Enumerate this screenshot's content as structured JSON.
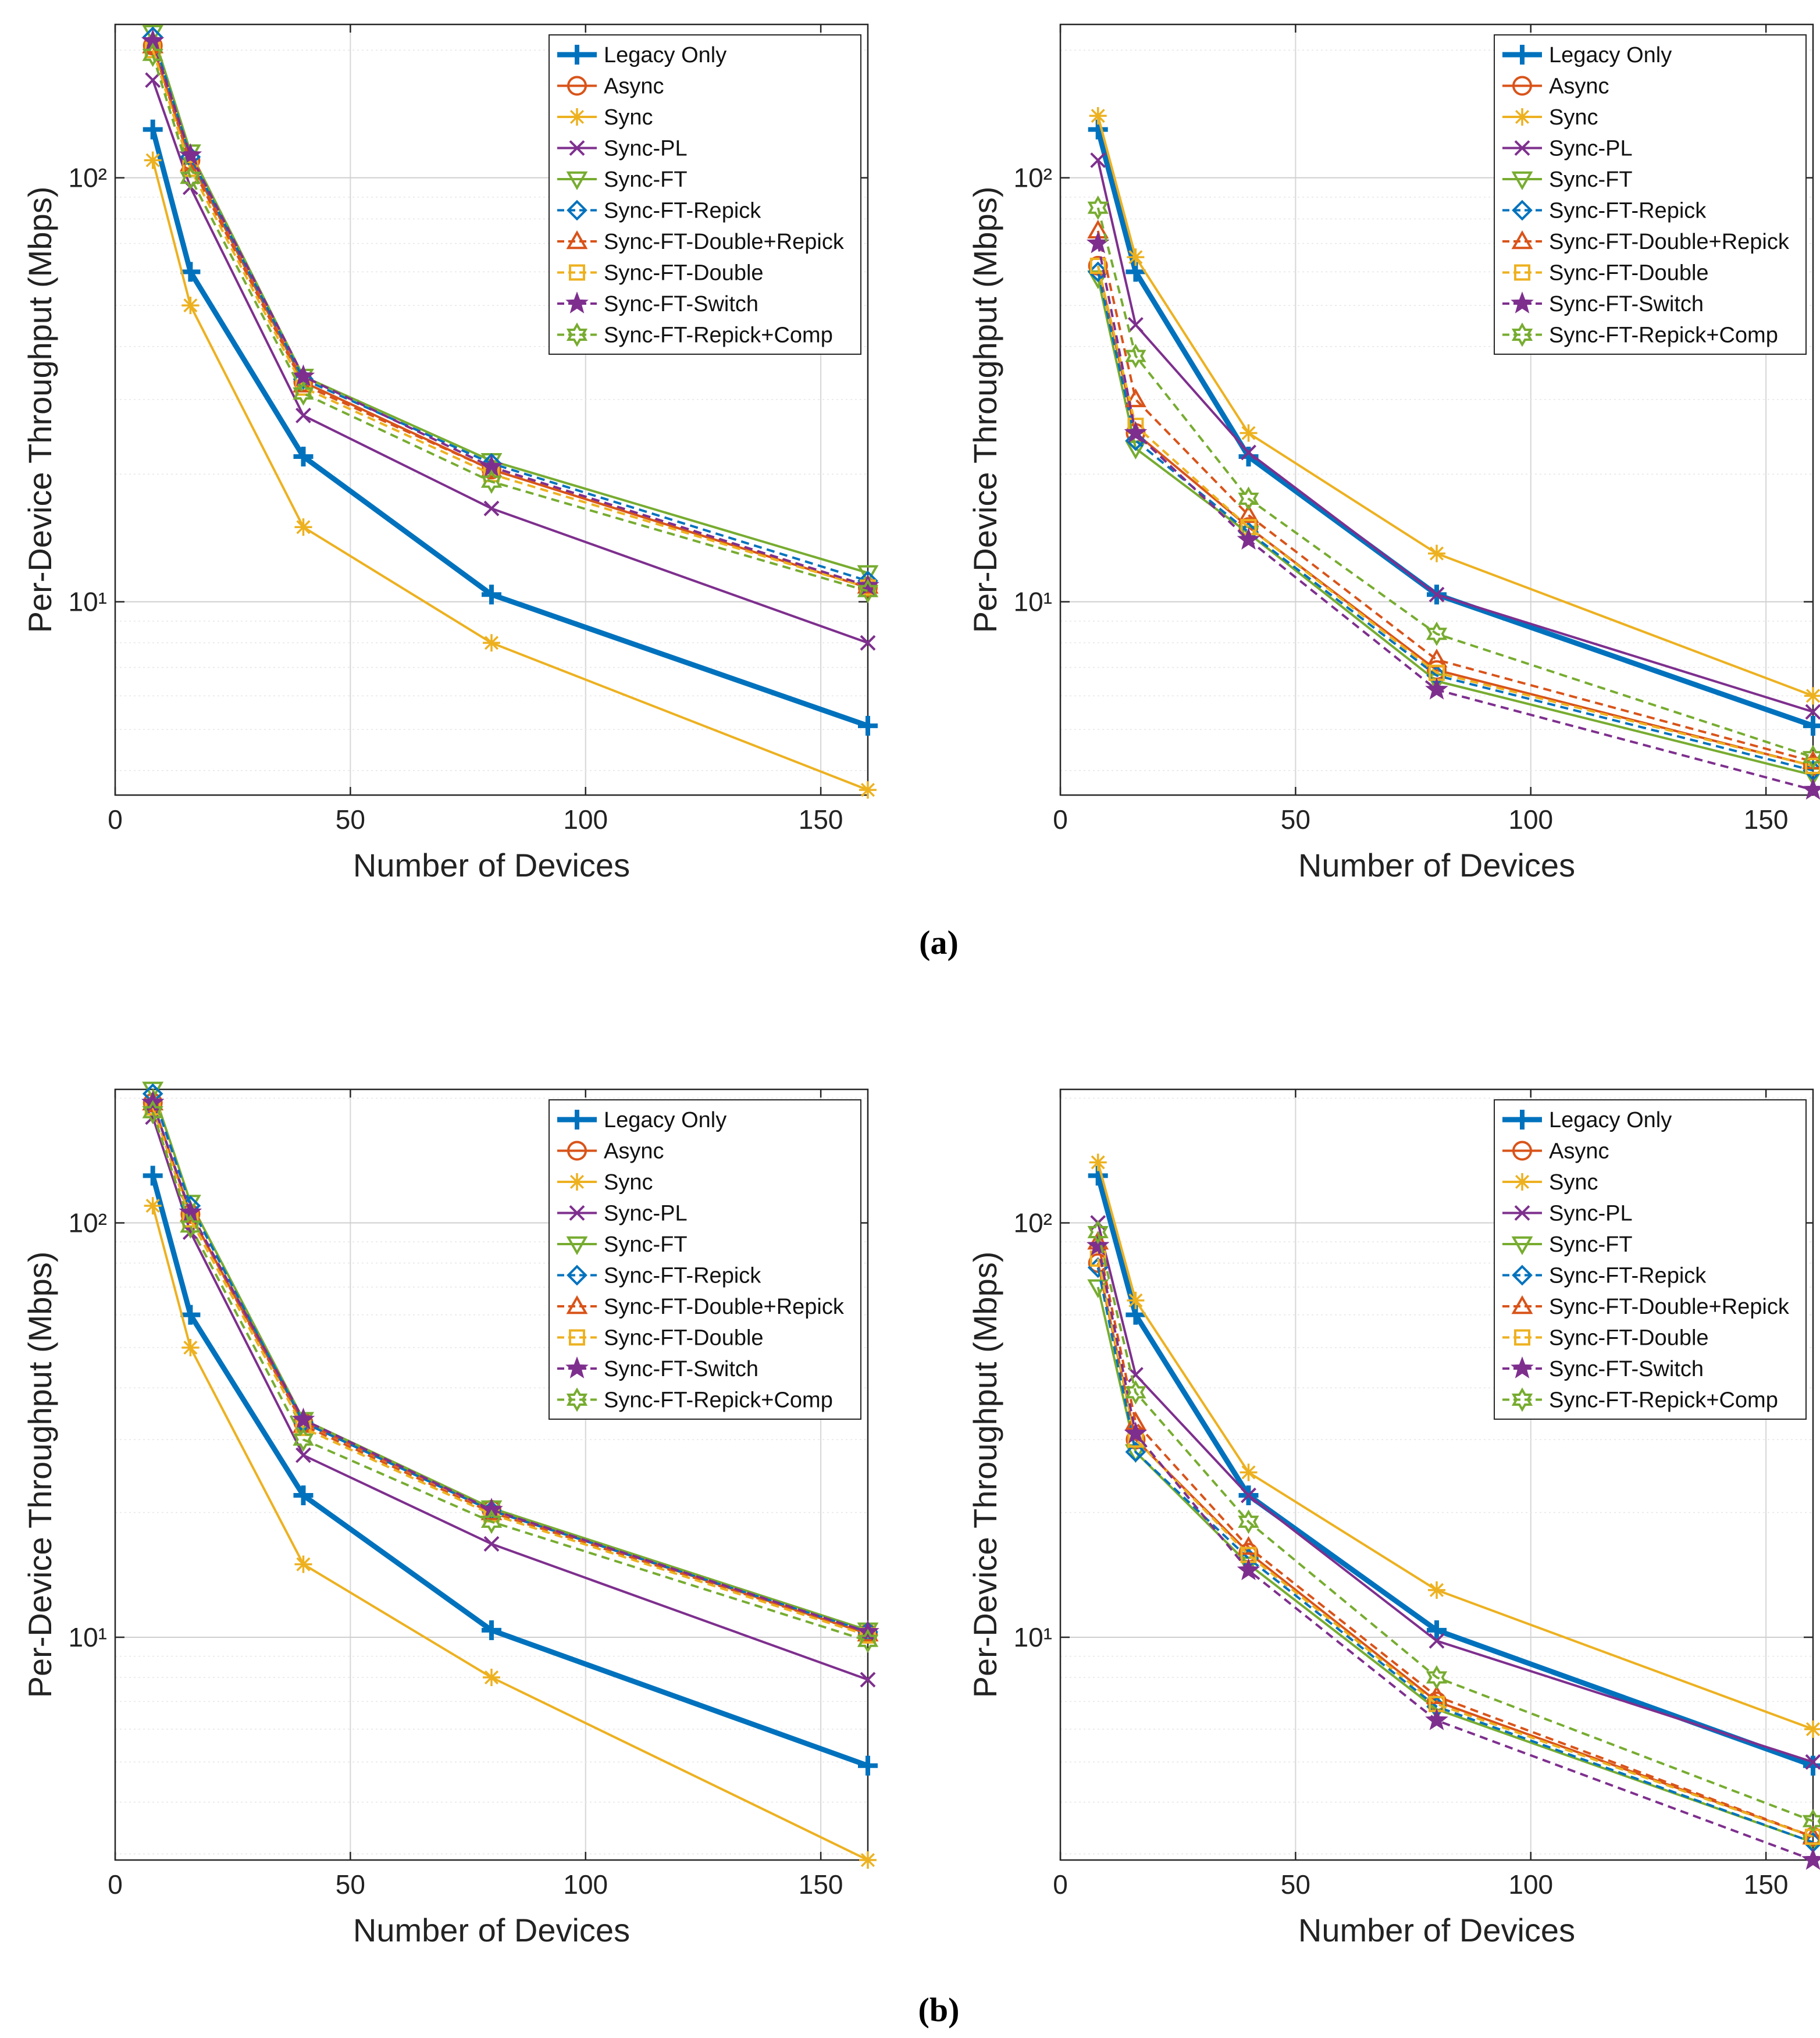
{
  "figure": {
    "caption_a": "(a)",
    "caption_b": "(b)"
  },
  "colors": {
    "blue": "#0072BD",
    "orange": "#D95319",
    "yellow": "#EDB120",
    "purple": "#7E2F8E",
    "green": "#77AC30",
    "grid": "#d9d9d9",
    "axis": "#262626"
  },
  "series_styles": [
    {
      "name": "Legacy Only",
      "color": "#0072BD",
      "marker": "plus",
      "dash": "solid",
      "width": "thick"
    },
    {
      "name": "Async",
      "color": "#D95319",
      "marker": "circle",
      "dash": "solid",
      "width": "normal"
    },
    {
      "name": "Sync",
      "color": "#EDB120",
      "marker": "asterisk",
      "dash": "solid",
      "width": "normal"
    },
    {
      "name": "Sync-PL",
      "color": "#7E2F8E",
      "marker": "x",
      "dash": "solid",
      "width": "normal"
    },
    {
      "name": "Sync-FT",
      "color": "#77AC30",
      "marker": "triangle-down",
      "dash": "solid",
      "width": "normal"
    },
    {
      "name": "Sync-FT-Repick",
      "color": "#0072BD",
      "marker": "diamond",
      "dash": "dashed",
      "width": "normal"
    },
    {
      "name": "Sync-FT-Double+Repick",
      "color": "#D95319",
      "marker": "triangle-up",
      "dash": "dashed",
      "width": "normal"
    },
    {
      "name": "Sync-FT-Double",
      "color": "#EDB120",
      "marker": "square",
      "dash": "dashed",
      "width": "normal"
    },
    {
      "name": "Sync-FT-Switch",
      "color": "#7E2F8E",
      "marker": "pentagram",
      "dash": "dashed",
      "width": "normal"
    },
    {
      "name": "Sync-FT-Repick+Comp",
      "color": "#77AC30",
      "marker": "hexagram",
      "dash": "dashed",
      "width": "normal"
    }
  ],
  "chart_data": [
    {
      "type": "line",
      "panel": "a-left",
      "xlabel": "Number of Devices",
      "ylabel": "Per-Device Throughput (Mbps)",
      "xlim": [
        0,
        160
      ],
      "ylim": [
        3.5,
        230
      ],
      "yscale": "log",
      "xticks": [
        0,
        50,
        100,
        150
      ],
      "yticks": [
        {
          "value": 10,
          "label": "10¹"
        },
        {
          "value": 100,
          "label": "10²"
        }
      ],
      "grid": true,
      "legend_position": "top-right",
      "x": [
        8,
        16,
        40,
        80,
        160
      ],
      "series": [
        {
          "name": "Legacy Only",
          "values": [
            130,
            60,
            22,
            10.4,
            5.1
          ]
        },
        {
          "name": "Async",
          "values": [
            205,
            110,
            33,
            20.5,
            10.8
          ]
        },
        {
          "name": "Sync",
          "values": [
            110,
            50,
            15,
            8.0,
            3.6
          ]
        },
        {
          "name": "Sync-PL",
          "values": [
            170,
            95,
            27.5,
            16.6,
            8.0
          ]
        },
        {
          "name": "Sync-FT",
          "values": [
            220,
            115,
            34,
            21.5,
            11.7
          ]
        },
        {
          "name": "Sync-FT-Repick",
          "values": [
            215,
            112,
            33.5,
            21.2,
            11.2
          ]
        },
        {
          "name": "Sync-FT-Double+Repick",
          "values": [
            205,
            108,
            32.5,
            20.5,
            10.9
          ]
        },
        {
          "name": "Sync-FT-Double",
          "values": [
            200,
            105,
            32,
            20.0,
            10.8
          ]
        },
        {
          "name": "Sync-FT-Switch",
          "values": [
            210,
            113,
            34,
            20.8,
            10.9
          ]
        },
        {
          "name": "Sync-FT-Repick+Comp",
          "values": [
            195,
            100,
            31,
            19.2,
            10.6
          ]
        }
      ]
    },
    {
      "type": "line",
      "panel": "a-right",
      "xlabel": "Number of Devices",
      "ylabel": "Per-Device Throughput (Mbps)",
      "xlim": [
        0,
        160
      ],
      "ylim": [
        3.5,
        230
      ],
      "yscale": "log",
      "xticks": [
        0,
        50,
        100,
        150
      ],
      "yticks": [
        {
          "value": 10,
          "label": "10¹"
        },
        {
          "value": 100,
          "label": "10²"
        }
      ],
      "grid": true,
      "legend_position": "top-right",
      "x": [
        8,
        16,
        40,
        80,
        160
      ],
      "series": [
        {
          "name": "Legacy Only",
          "values": [
            130,
            60,
            22,
            10.4,
            5.1
          ]
        },
        {
          "name": "Async",
          "values": [
            62,
            25,
            15,
            6.9,
            4.1
          ]
        },
        {
          "name": "Sync",
          "values": [
            140,
            65,
            25,
            13,
            6.0
          ]
        },
        {
          "name": "Sync-PL",
          "values": [
            110,
            45,
            22.5,
            10.4,
            5.5
          ]
        },
        {
          "name": "Sync-FT",
          "values": [
            58,
            23,
            14.5,
            6.5,
            3.9
          ]
        },
        {
          "name": "Sync-FT-Repick",
          "values": [
            60,
            24,
            14.6,
            6.7,
            4.0
          ]
        },
        {
          "name": "Sync-FT-Double+Repick",
          "values": [
            75,
            30,
            16,
            7.3,
            4.2
          ]
        },
        {
          "name": "Sync-FT-Double",
          "values": [
            62,
            26,
            15,
            6.8,
            4.1
          ]
        },
        {
          "name": "Sync-FT-Switch",
          "values": [
            70,
            25,
            14,
            6.2,
            3.6
          ]
        },
        {
          "name": "Sync-FT-Repick+Comp",
          "values": [
            85,
            38,
            17.5,
            8.4,
            4.3
          ]
        }
      ]
    },
    {
      "type": "line",
      "panel": "b-left",
      "xlabel": "Number of Devices",
      "ylabel": "Per-Device Throughput (Mbps)",
      "xlim": [
        0,
        160
      ],
      "ylim": [
        2.9,
        210
      ],
      "yscale": "log",
      "xticks": [
        0,
        50,
        100,
        150
      ],
      "yticks": [
        {
          "value": 10,
          "label": "10¹"
        },
        {
          "value": 100,
          "label": "10²"
        }
      ],
      "grid": true,
      "legend_position": "top-right",
      "x": [
        8,
        16,
        40,
        80,
        160
      ],
      "series": [
        {
          "name": "Legacy Only",
          "values": [
            130,
            60,
            22,
            10.4,
            4.9
          ]
        },
        {
          "name": "Async",
          "values": [
            195,
            105,
            33,
            20.3,
            10.2
          ]
        },
        {
          "name": "Sync",
          "values": [
            110,
            50,
            15,
            8.0,
            2.9
          ]
        },
        {
          "name": "Sync-PL",
          "values": [
            180,
            95,
            27.5,
            16.8,
            7.9
          ]
        },
        {
          "name": "Sync-FT",
          "values": [
            210,
            112,
            33.5,
            20.5,
            10.4
          ]
        },
        {
          "name": "Sync-FT-Repick",
          "values": [
            205,
            110,
            33,
            20.2,
            10.3
          ]
        },
        {
          "name": "Sync-FT-Double+Repick",
          "values": [
            195,
            105,
            32.5,
            20.0,
            10.2
          ]
        },
        {
          "name": "Sync-FT-Double",
          "values": [
            190,
            102,
            32,
            19.8,
            10.1
          ]
        },
        {
          "name": "Sync-FT-Switch",
          "values": [
            195,
            106,
            33.5,
            20.3,
            10.3
          ]
        },
        {
          "name": "Sync-FT-Repick+Comp",
          "values": [
            185,
            98,
            30,
            19.0,
            9.8
          ]
        }
      ]
    },
    {
      "type": "line",
      "panel": "b-right",
      "xlabel": "Number of Devices",
      "ylabel": "Per-Device Throughput (Mbps)",
      "xlim": [
        0,
        160
      ],
      "ylim": [
        2.9,
        210
      ],
      "yscale": "log",
      "xticks": [
        0,
        50,
        100,
        150
      ],
      "yticks": [
        {
          "value": 10,
          "label": "10¹"
        },
        {
          "value": 100,
          "label": "10²"
        }
      ],
      "grid": true,
      "legend_position": "top-right",
      "x": [
        8,
        16,
        40,
        80,
        160
      ],
      "series": [
        {
          "name": "Legacy Only",
          "values": [
            130,
            60,
            22,
            10.4,
            4.9
          ]
        },
        {
          "name": "Async",
          "values": [
            80,
            30,
            16,
            7.0,
            3.3
          ]
        },
        {
          "name": "Sync",
          "values": [
            140,
            65,
            25,
            13,
            6.0
          ]
        },
        {
          "name": "Sync-PL",
          "values": [
            100,
            43,
            22,
            9.8,
            5.0
          ]
        },
        {
          "name": "Sync-FT",
          "values": [
            70,
            28,
            15,
            6.7,
            3.2
          ]
        },
        {
          "name": "Sync-FT-Repick",
          "values": [
            78,
            28,
            15.5,
            6.8,
            3.2
          ]
        },
        {
          "name": "Sync-FT-Double+Repick",
          "values": [
            90,
            33,
            16.5,
            7.2,
            3.3
          ]
        },
        {
          "name": "Sync-FT-Double",
          "values": [
            82,
            30,
            15.8,
            6.9,
            3.3
          ]
        },
        {
          "name": "Sync-FT-Switch",
          "values": [
            88,
            31,
            14.5,
            6.3,
            2.9
          ]
        },
        {
          "name": "Sync-FT-Repick+Comp",
          "values": [
            95,
            39,
            19,
            8.0,
            3.6
          ]
        }
      ]
    }
  ]
}
